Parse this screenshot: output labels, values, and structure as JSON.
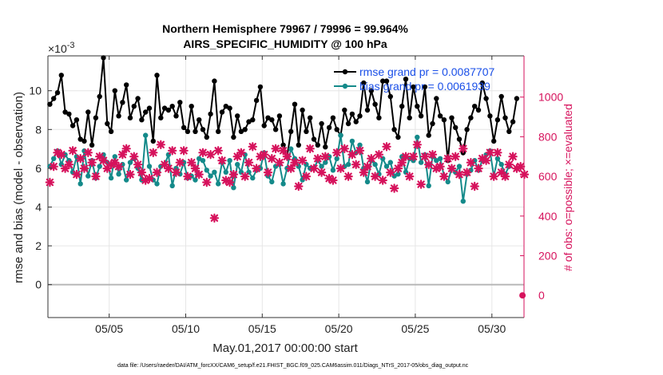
{
  "chart_data": {
    "type": "line",
    "title_line1": "Northern Hemisphere 79967 / 79996 = 99.964%",
    "title_line2": "AIRS_SPECIFIC_HUMIDITY @ 100 hPa",
    "ylabel": "rmse and bias (model - observation)",
    "y2label": "# of obs: o=possible; ×=evaluated",
    "xlabel": "May.01,2017 00:00:00 start",
    "exponent_label": "×10",
    "exponent_power": "-3",
    "footer": "data file: /Users/raeder/DAI/ATM_forcXX/CAM6_setup/f.e21.FHIST_BGC.f09_025.CAM6assim.011/Diags_NTrS_2017-05/obs_diag_output.nc",
    "xlim": [
      1.0,
      32.1
    ],
    "ylim": [
      -0.0017,
      0.0118
    ],
    "y2lim": [
      -112,
      1208
    ],
    "x_ticks": [
      5,
      10,
      15,
      20,
      25,
      30
    ],
    "x_tick_labels": [
      "05/05",
      "05/10",
      "05/15",
      "05/20",
      "05/25",
      "05/30"
    ],
    "y_ticks": [
      0,
      2,
      4,
      6,
      8,
      10
    ],
    "y_tick_labels": [
      "0",
      "2",
      "4",
      "6",
      "8",
      "10"
    ],
    "y2_ticks": [
      0,
      200,
      400,
      600,
      800,
      1000
    ],
    "y2_tick_labels": [
      "0",
      "200",
      "400",
      "600",
      "800",
      "1000"
    ],
    "colors": {
      "rmse": "#000000",
      "bias": "#148a8a",
      "obs": "#d6125c",
      "legend_text": "#1a4fe8",
      "right_axis": "#d6125c",
      "zero_line": "#b8b8b8",
      "grid": "#e6e6e6"
    },
    "series": [
      {
        "name": "rmse grand pr = 0.0087707",
        "x_start": 1.125,
        "x_step": 0.25,
        "values": [
          9.3,
          9.6,
          9.9,
          10.8,
          8.9,
          8.8,
          8.2,
          8.5,
          7.5,
          7.4,
          8.9,
          7.2,
          8.6,
          9.7,
          11.7,
          8.3,
          7.9,
          10.0,
          8.7,
          9.4,
          10.3,
          8.6,
          9.2,
          9.6,
          8.5,
          8.9,
          9.1,
          7.4,
          10.8,
          8.6,
          9.1,
          9.0,
          9.2,
          8.7,
          9.4,
          8.1,
          7.9,
          9.2,
          7.9,
          8.5,
          8.0,
          7.6,
          8.8,
          10.5,
          7.9,
          8.9,
          9.2,
          9.1,
          7.6,
          8.7,
          7.9,
          8.0,
          8.4,
          8.5,
          9.5,
          10.2,
          8.2,
          8.6,
          8.5,
          8.0,
          8.7,
          7.2,
          6.6,
          7.9,
          9.3,
          7.2,
          9.0,
          7.9,
          8.6,
          7.5,
          7.2,
          8.3,
          7.1,
          8.1,
          8.6,
          8.0,
          7.7,
          9.0,
          8.3,
          8.8,
          8.4,
          8.7,
          10.4,
          9.0,
          10.0,
          9.3,
          8.6,
          10.5,
          10.5,
          9.7,
          8.0,
          7.6,
          9.2,
          10.6,
          8.6,
          10.2,
          9.2,
          8.7,
          10.2,
          7.7,
          8.3,
          9.6,
          8.7,
          8.5,
          6.4,
          8.6,
          8.1,
          7.5,
          6.8,
          8.0,
          8.6,
          9.2,
          9.0,
          10.4,
          9.6,
          8.7,
          7.4,
          8.5,
          9.7,
          8.6,
          7.9,
          8.4,
          9.6
        ]
      },
      {
        "name": "bias grand pr = 0.0061939",
        "x_start": 1.125,
        "x_step": 0.25,
        "values": [
          6.1,
          6.5,
          6.9,
          6.2,
          6.7,
          6.4,
          5.8,
          6.6,
          5.2,
          6.9,
          5.6,
          6.4,
          5.5,
          6.1,
          6.7,
          6.3,
          5.5,
          6.6,
          5.7,
          6.2,
          5.4,
          6.3,
          6.5,
          6.0,
          5.4,
          7.7,
          6.1,
          5.4,
          5.2,
          6.1,
          6.2,
          6.7,
          5.1,
          6.0,
          5.7,
          6.3,
          5.5,
          5.6,
          5.4,
          6.5,
          6.4,
          5.9,
          5.6,
          5.8,
          5.2,
          6.3,
          5.8,
          6.4,
          5.0,
          6.2,
          5.8,
          6.7,
          5.8,
          5.5,
          5.9,
          6.0,
          6.8,
          5.6,
          5.3,
          6.1,
          6.2,
          5.2,
          6.0,
          7.0,
          6.5,
          6.1,
          5.4,
          6.2,
          6.0,
          6.0,
          6.4,
          6.1,
          6.3,
          6.6,
          5.9,
          6.5,
          7.7,
          6.1,
          6.2,
          7.4,
          6.8,
          7.2,
          6.0,
          5.3,
          6.4,
          6.2,
          5.7,
          6.5,
          6.1,
          6.3,
          5.6,
          5.7,
          6.6,
          5.8,
          6.5,
          6.4,
          7.6,
          6.3,
          6.7,
          5.1,
          6.6,
          6.4,
          6.5,
          5.6,
          5.3,
          6.0,
          5.8,
          6.1,
          4.3,
          5.7,
          5.9,
          6.4,
          5.9,
          6.4,
          6.7,
          6.9,
          5.6,
          6.5,
          6.2,
          5.7,
          6.1
        ]
      }
    ],
    "obs_evaluated": {
      "x_start": 1.125,
      "x_step": 0.25,
      "values": [
        570,
        650,
        720,
        710,
        640,
        660,
        730,
        610,
        690,
        640,
        720,
        670,
        600,
        700,
        680,
        640,
        660,
        670,
        650,
        710,
        740,
        610,
        700,
        660,
        620,
        580,
        590,
        720,
        620,
        760,
        660,
        640,
        730,
        620,
        670,
        730,
        600,
        670,
        640,
        610,
        720,
        570,
        710,
        390,
        730,
        680,
        580,
        570,
        610,
        700,
        720,
        600,
        670,
        750,
        640,
        700,
        710,
        620,
        690,
        740,
        670,
        730,
        700,
        640,
        670,
        550,
        680,
        600,
        740,
        640,
        690,
        620,
        700,
        590,
        580,
        720,
        640,
        740,
        600,
        710,
        660,
        730,
        620,
        650,
        690,
        600,
        710,
        580,
        750,
        620,
        540,
        640,
        670,
        700,
        600,
        700,
        760,
        560,
        700,
        660,
        710,
        640,
        650,
        600,
        690,
        640,
        700,
        610,
        740,
        620,
        670,
        550,
        640,
        690,
        680,
        720,
        600,
        720,
        620,
        600,
        660,
        700,
        640,
        650,
        610
      ]
    },
    "obs_possible": {
      "x": 32.0,
      "value": 0
    }
  }
}
